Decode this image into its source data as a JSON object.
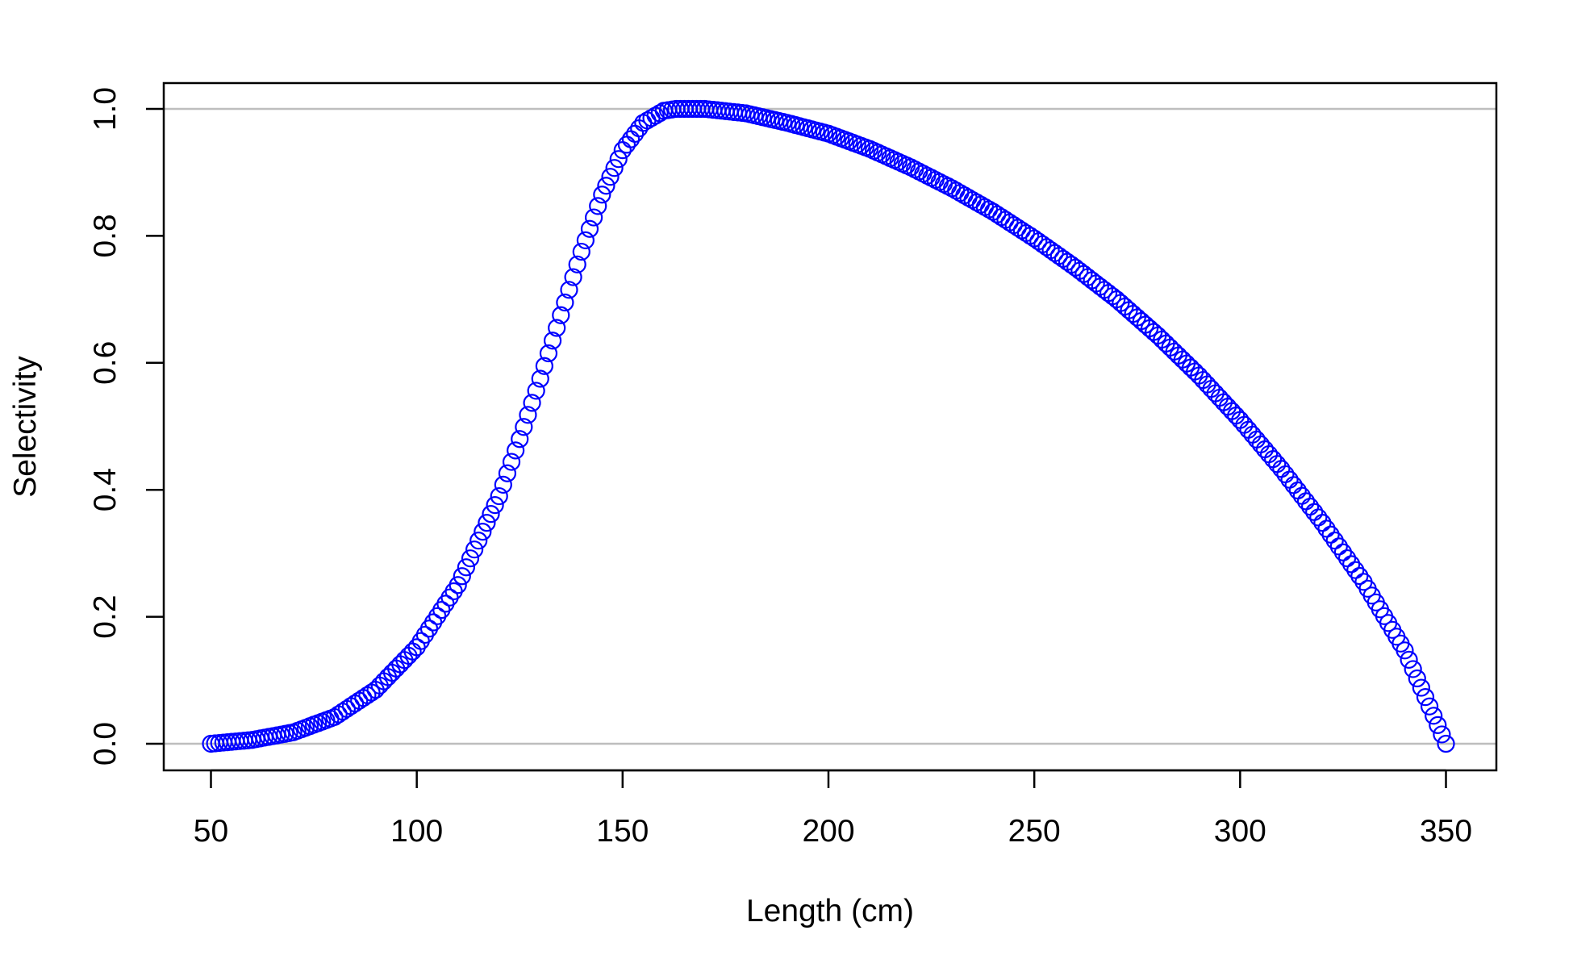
{
  "chart_data": {
    "type": "scatter",
    "title": "",
    "xlabel": "Length (cm)",
    "ylabel": "Selectivity",
    "xlim": [
      50,
      350
    ],
    "ylim": [
      0,
      1
    ],
    "x_ticks": [
      50,
      100,
      150,
      200,
      250,
      300,
      350
    ],
    "y_ticks": [
      0.0,
      0.2,
      0.4,
      0.6,
      0.8,
      1.0
    ],
    "x_tick_labels": [
      "50",
      "100",
      "150",
      "200",
      "250",
      "300",
      "350"
    ],
    "y_tick_labels": [
      "0.0",
      "0.2",
      "0.4",
      "0.6",
      "0.8",
      "1.0"
    ],
    "reference_lines_y": [
      0,
      1
    ],
    "reference_line_color": "#bebebe",
    "marker": "open-circle",
    "marker_color": "#0000ff",
    "grid": false,
    "legend": "none",
    "series": [
      {
        "x_start": 50,
        "x_step": 1,
        "x_end": 350,
        "curve_anchors": [
          [
            50,
            0.0
          ],
          [
            60,
            0.006
          ],
          [
            70,
            0.018
          ],
          [
            80,
            0.042
          ],
          [
            90,
            0.085
          ],
          [
            100,
            0.152
          ],
          [
            110,
            0.25
          ],
          [
            120,
            0.39
          ],
          [
            125,
            0.48
          ],
          [
            130,
            0.575
          ],
          [
            135,
            0.675
          ],
          [
            140,
            0.775
          ],
          [
            145,
            0.865
          ],
          [
            150,
            0.935
          ],
          [
            155,
            0.978
          ],
          [
            160,
            0.997
          ],
          [
            163,
            1.0
          ],
          [
            170,
            1.0
          ],
          [
            180,
            0.993
          ],
          [
            190,
            0.978
          ],
          [
            200,
            0.961
          ],
          [
            210,
            0.937
          ],
          [
            220,
            0.908
          ],
          [
            230,
            0.875
          ],
          [
            240,
            0.838
          ],
          [
            250,
            0.796
          ],
          [
            260,
            0.75
          ],
          [
            270,
            0.7
          ],
          [
            280,
            0.643
          ],
          [
            290,
            0.58
          ],
          [
            300,
            0.51
          ],
          [
            310,
            0.433
          ],
          [
            320,
            0.348
          ],
          [
            330,
            0.255
          ],
          [
            340,
            0.147
          ],
          [
            350,
            0.0
          ]
        ]
      }
    ]
  }
}
